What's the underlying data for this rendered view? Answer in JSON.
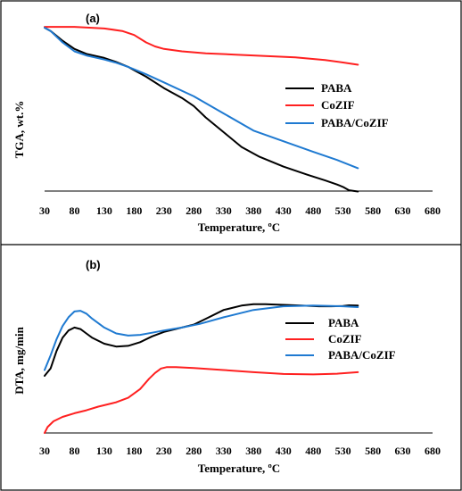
{
  "colors": {
    "PABA": "#000000",
    "CoZIF": "#ff2020",
    "PABA/CoZIF": "#1f7ad1"
  },
  "chart_data": [
    {
      "type": "line",
      "panel_label": "(a)",
      "xlabel": "Temperature, ºC",
      "ylabel": "TGA,  wt.%",
      "xlim": [
        30,
        680
      ],
      "xticks": [
        "30",
        "80",
        "130",
        "180",
        "230",
        "280",
        "330",
        "380",
        "430",
        "480",
        "530",
        "580",
        "630",
        "680"
      ],
      "y_tick_labels": false,
      "ylim": [
        0,
        100
      ],
      "legend": "center-right",
      "grid": false,
      "series": [
        {
          "name": "PABA",
          "color_key": "PABA",
          "x": [
            30,
            40,
            60,
            80,
            100,
            130,
            150,
            170,
            180,
            200,
            230,
            260,
            280,
            300,
            330,
            360,
            390,
            430,
            470,
            500,
            520,
            530,
            540,
            555
          ],
          "y": [
            100,
            98,
            92,
            87,
            84,
            81.5,
            79,
            76,
            74,
            70,
            63,
            57,
            52,
            45,
            36,
            27,
            21,
            15,
            10,
            6.5,
            4,
            2.5,
            0.5,
            -0.3
          ]
        },
        {
          "name": "CoZIF",
          "color_key": "CoZIF",
          "x": [
            30,
            80,
            130,
            160,
            180,
            200,
            215,
            230,
            260,
            300,
            350,
            400,
            450,
            500,
            530,
            555
          ],
          "y": [
            100.5,
            100.5,
            99.5,
            98,
            95.5,
            91,
            88.5,
            87,
            85.5,
            84.3,
            83.5,
            82.7,
            81.8,
            80.2,
            78.7,
            77.3
          ]
        },
        {
          "name": "PABA/CoZIF",
          "color_key": "PABA/CoZIF",
          "x": [
            30,
            40,
            60,
            80,
            100,
            130,
            150,
            170,
            180,
            200,
            230,
            280,
            330,
            380,
            430,
            480,
            520,
            555
          ],
          "y": [
            100,
            98,
            91,
            85.5,
            83,
            80.5,
            78.5,
            76,
            74.5,
            71.5,
            66.5,
            58,
            47.5,
            37,
            30.5,
            24,
            19,
            14
          ]
        }
      ]
    },
    {
      "type": "line",
      "panel_label": "(b)",
      "xlabel": "Temperature, ºC",
      "ylabel": "DTA,  mg/min",
      "xlim": [
        30,
        680
      ],
      "xticks": [
        "30",
        "80",
        "130",
        "180",
        "230",
        "280",
        "330",
        "380",
        "430",
        "480",
        "530",
        "580",
        "630",
        "680"
      ],
      "y_tick_labels": false,
      "ylim": [
        0,
        100
      ],
      "legend": "center-right",
      "grid": false,
      "series": [
        {
          "name": "PABA",
          "color_key": "PABA",
          "x": [
            30,
            40,
            50,
            60,
            70,
            80,
            90,
            100,
            110,
            130,
            150,
            170,
            190,
            210,
            230,
            260,
            280,
            300,
            330,
            360,
            380,
            400,
            430,
            460,
            490,
            510,
            530,
            540,
            555
          ],
          "y": [
            39,
            44,
            56,
            65,
            70,
            72,
            71,
            68,
            65,
            61,
            59,
            59.5,
            62,
            66,
            69,
            72,
            74,
            78,
            84,
            87,
            88,
            88,
            87.5,
            87,
            86.5,
            86.5,
            86.7,
            87.2,
            87
          ]
        },
        {
          "name": "CoZIF",
          "color_key": "CoZIF",
          "x": [
            30,
            35,
            45,
            60,
            80,
            100,
            120,
            150,
            170,
            190,
            205,
            215,
            225,
            235,
            250,
            280,
            330,
            380,
            430,
            480,
            520,
            555
          ],
          "y": [
            0,
            4,
            8,
            11,
            13.5,
            15.5,
            18,
            21,
            24,
            30,
            37,
            41,
            44,
            45,
            45,
            44.3,
            43,
            41.5,
            40.3,
            40,
            40.5,
            41.5
          ]
        },
        {
          "name": "PABA/CoZIF",
          "color_key": "PABA/CoZIF",
          "x": [
            30,
            40,
            50,
            60,
            70,
            80,
            90,
            100,
            110,
            130,
            150,
            170,
            190,
            210,
            230,
            260,
            290,
            330,
            380,
            430,
            480,
            530,
            555
          ],
          "y": [
            43,
            53,
            64,
            73,
            79,
            83,
            83.5,
            81.5,
            78,
            72,
            68,
            66.5,
            67,
            68.5,
            70,
            72,
            74.5,
            79,
            84,
            86.5,
            87,
            86.5,
            86
          ]
        }
      ]
    }
  ]
}
